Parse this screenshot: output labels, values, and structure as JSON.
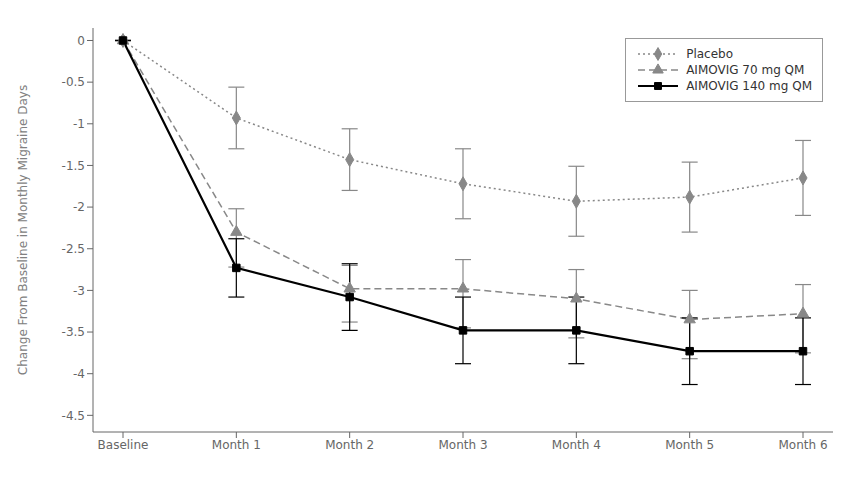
{
  "chart_data": {
    "type": "line",
    "categories": [
      "Baseline",
      "Month 1",
      "Month 2",
      "Month 3",
      "Month 4",
      "Month 5",
      "Month 6"
    ],
    "ylabel": "Change From Baseline in Monthly Migraine Days",
    "ylim": [
      -4.7,
      0.15
    ],
    "yticks": [
      0,
      -0.5,
      -1,
      -1.5,
      -2,
      -2.5,
      -3,
      -3.5,
      -4,
      -4.5
    ],
    "grid": false,
    "legend": "upper right",
    "series": [
      {
        "name": "Placebo",
        "color": "#888888",
        "values": [
          0,
          -0.93,
          -1.43,
          -1.72,
          -1.93,
          -1.88,
          -1.65
        ],
        "error_low": [
          0,
          0.37,
          0.37,
          0.42,
          0.42,
          0.42,
          0.45
        ],
        "error_high": [
          0,
          0.37,
          0.37,
          0.42,
          0.42,
          0.42,
          0.45
        ],
        "marker": "diamond",
        "line_style": "dotted"
      },
      {
        "name": "AIMOVIG 70 mg QM",
        "color": "#888888",
        "values": [
          0,
          -2.3,
          -2.98,
          -2.98,
          -3.1,
          -3.35,
          -3.28
        ],
        "error_low": [
          0,
          0.42,
          0.4,
          0.47,
          0.47,
          0.47,
          0.47
        ],
        "error_high": [
          0,
          0.28,
          0.28,
          0.35,
          0.35,
          0.35,
          0.35
        ],
        "marker": "triangle",
        "line_style": "dashed"
      },
      {
        "name": "AIMOVIG 140 mg QM",
        "color": "#000000",
        "values": [
          0,
          -2.73,
          -3.08,
          -3.48,
          -3.48,
          -3.73,
          -3.73
        ],
        "error_low": [
          0,
          0.35,
          0.4,
          0.4,
          0.4,
          0.4,
          0.4
        ],
        "error_high": [
          0,
          0.35,
          0.4,
          0.4,
          0.4,
          0.4,
          0.4
        ],
        "marker": "square",
        "line_style": "solid"
      }
    ]
  }
}
